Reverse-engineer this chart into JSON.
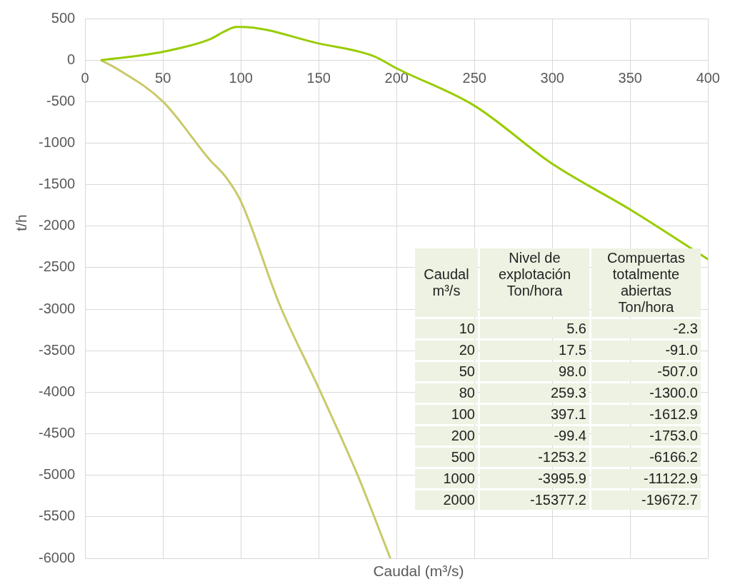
{
  "chart_data": [
    {
      "type": "line",
      "xlabel": "Caudal (m³/s)",
      "ylabel": "t/h",
      "xlim": [
        0,
        400
      ],
      "xticks": [
        0,
        50,
        100,
        150,
        200,
        250,
        300,
        350,
        400
      ],
      "ylim": [
        -6000,
        500
      ],
      "yticks": [
        500,
        0,
        -500,
        -1000,
        -1500,
        -2000,
        -2500,
        -3000,
        -3500,
        -4000,
        -4500,
        -5000,
        -5500,
        -6000
      ],
      "grid": true,
      "series": [
        {
          "color": "#99cc00",
          "x": [
            10,
            20,
            50,
            80,
            90,
            97,
            100,
            150,
            185,
            200,
            250,
            300,
            350,
            400
          ],
          "values": [
            0,
            20,
            100,
            250,
            350,
            400,
            400,
            200,
            50,
            -100,
            -550,
            -1250,
            -1800,
            -2400
          ]
        },
        {
          "color": "#c9c96a",
          "x": [
            10,
            20,
            50,
            80,
            90,
            100,
            125,
            150,
            175,
            196
          ],
          "values": [
            0,
            -100,
            -500,
            -1200,
            -1400,
            -1700,
            -2950,
            -3950,
            -5000,
            -6000
          ]
        }
      ]
    },
    {
      "type": "other",
      "xlabel": "Caudal m³/s",
      "categories": [
        "10",
        "20",
        "50",
        "80",
        "100",
        "200",
        "500",
        "1000",
        "2000"
      ],
      "series": [
        {
          "name": "Nivel de explotación Ton/hora",
          "values": [
            5.6,
            17.5,
            98.0,
            259.3,
            397.1,
            -99.4,
            -1253.2,
            -3995.9,
            -15377.2
          ],
          "value_labels": [
            "5.6",
            "17.5",
            "98.0",
            "259.3",
            "397.1",
            "-99.4",
            "-1253.2",
            "-3995.9",
            "-15377.2"
          ]
        },
        {
          "name": "Compuertas totalmente abiertas Ton/hora",
          "values": [
            -2.3,
            -91.0,
            -507.0,
            -1300.0,
            -1612.9,
            -1753.0,
            -6166.2,
            -11122.9,
            -19672.7
          ],
          "value_labels": [
            "-2.3",
            "-91.0",
            "-507.0",
            "-1300.0",
            "-1612.9",
            "-1753.0",
            "-6166.2",
            "-11122.9",
            "-19672.7"
          ]
        }
      ],
      "data_labels": true
    }
  ]
}
